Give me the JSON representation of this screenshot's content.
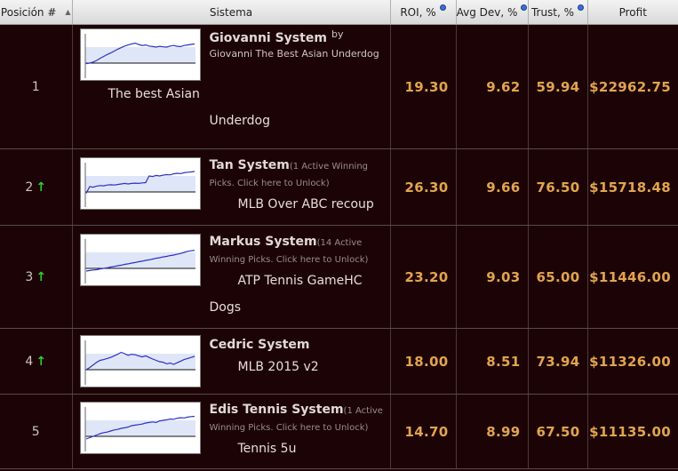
{
  "headers": {
    "position": "Posición #",
    "system": "Sistema",
    "roi": "ROI, %",
    "avg_dev": "Avg Dev, %",
    "trust": "Trust, %",
    "profit": "Profit"
  },
  "rows": [
    {
      "position": "1",
      "trend": "",
      "name": "Giovanni System",
      "by": "by",
      "author": "Giovanni The Best Asian Underdog",
      "unlock": "",
      "desc1": "The best Asian",
      "desc2": "Underdog",
      "roi": "19.30",
      "avg_dev": "9.62",
      "trust": "59.94",
      "profit": "$22962.75",
      "series": [
        0.18,
        0.2,
        0.24,
        0.3,
        0.38,
        0.45,
        0.52,
        0.58,
        0.65,
        0.72,
        0.78,
        0.84,
        0.88,
        0.92,
        0.95,
        0.9,
        0.86,
        0.88,
        0.84,
        0.82,
        0.8,
        0.83,
        0.81,
        0.8,
        0.84,
        0.86,
        0.83,
        0.82,
        0.86,
        0.88,
        0.9,
        0.92
      ]
    },
    {
      "position": "2",
      "trend": "up",
      "name": "Tan System",
      "by": "",
      "author": "",
      "unlock": "(1 Active Winning Picks. Click here to Unlock)",
      "desc1": "MLB Over ABC recoup",
      "desc2": "",
      "roi": "26.30",
      "avg_dev": "9.66",
      "trust": "76.50",
      "profit": "$15718.48",
      "series": [
        0.15,
        0.4,
        0.38,
        0.42,
        0.44,
        0.43,
        0.46,
        0.47,
        0.46,
        0.48,
        0.5,
        0.52,
        0.5,
        0.52,
        0.53,
        0.52,
        0.54,
        0.55,
        0.8,
        0.78,
        0.82,
        0.8,
        0.83,
        0.85,
        0.84,
        0.88,
        0.9,
        0.89,
        0.92,
        0.94,
        0.95,
        0.97
      ]
    },
    {
      "position": "3",
      "trend": "up",
      "name": "Markus System",
      "by": "",
      "author": "",
      "unlock": "(14 Active Winning Picks. Click here to Unlock)",
      "desc1": "ATP Tennis GameHC",
      "desc2": "Dogs",
      "roi": "23.20",
      "avg_dev": "9.03",
      "trust": "65.00",
      "profit": "$11446.00",
      "series": [
        0.1,
        0.12,
        0.14,
        0.15,
        0.18,
        0.2,
        0.22,
        0.25,
        0.27,
        0.3,
        0.32,
        0.35,
        0.37,
        0.4,
        0.42,
        0.45,
        0.47,
        0.5,
        0.52,
        0.55,
        0.58,
        0.6,
        0.63,
        0.65,
        0.68,
        0.7,
        0.73,
        0.76,
        0.8,
        0.84,
        0.86,
        0.88
      ]
    },
    {
      "position": "4",
      "trend": "up",
      "name": "Cedric System",
      "by": "",
      "author": "",
      "unlock": "",
      "desc1": "MLB 2015 v2",
      "desc2": "",
      "roi": "18.00",
      "avg_dev": "8.51",
      "trust": "73.94",
      "profit": "$11326.00",
      "series": [
        0.2,
        0.28,
        0.38,
        0.48,
        0.55,
        0.58,
        0.62,
        0.66,
        0.72,
        0.78,
        0.85,
        0.8,
        0.74,
        0.78,
        0.76,
        0.72,
        0.68,
        0.72,
        0.66,
        0.6,
        0.55,
        0.5,
        0.48,
        0.42,
        0.45,
        0.4,
        0.46,
        0.52,
        0.58,
        0.62,
        0.66,
        0.7
      ]
    },
    {
      "position": "5",
      "trend": "",
      "name": "Edis Tennis System",
      "by": "",
      "author": "",
      "unlock": "(1 Active Winning Picks. Click here to Unlock)",
      "desc1": "Tennis 5u",
      "desc2": "",
      "roi": "14.70",
      "avg_dev": "8.99",
      "trust": "67.50",
      "profit": "$11135.00",
      "series": [
        0.1,
        0.15,
        0.2,
        0.25,
        0.3,
        0.34,
        0.36,
        0.4,
        0.44,
        0.46,
        0.5,
        0.52,
        0.55,
        0.6,
        0.62,
        0.64,
        0.66,
        0.7,
        0.72,
        0.74,
        0.72,
        0.78,
        0.8,
        0.82,
        0.85,
        0.84,
        0.88,
        0.9,
        0.89,
        0.92,
        0.94,
        0.95
      ]
    }
  ]
}
